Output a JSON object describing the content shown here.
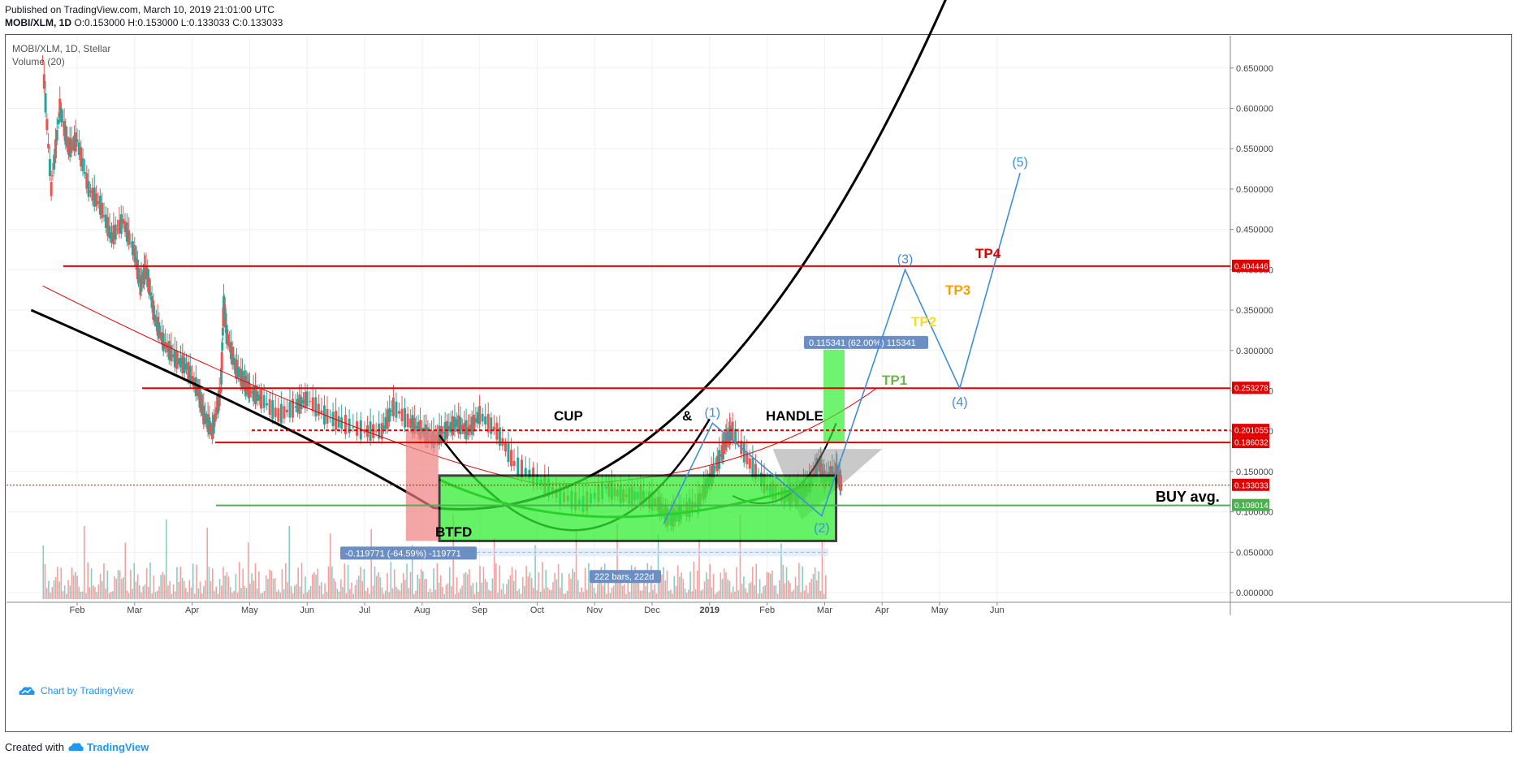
{
  "header": {
    "published": "Published on TradingView.com, March 10, 2019 21:01:00 UTC",
    "symbol": "MOBI/XLM, 1D",
    "ohlc": "O:0.153000 H:0.153000 L:0.133033 C:0.133033"
  },
  "legend": {
    "title": "MOBI/XLM, 1D, Stellar",
    "volume": "Volume (20)"
  },
  "watermark": {
    "text": "Chart by TradingView",
    "icon": "tradingview-cloud-icon"
  },
  "footer": {
    "created_with": "Created with",
    "brand": "TradingView",
    "icon": "tradingview-cloud-icon"
  },
  "colors": {
    "up": "#26a69a",
    "down": "#ef5350",
    "level": "#e00000",
    "buy": "#4caf50",
    "wave": "#3f8ed6",
    "zone": "#33ee33",
    "loss": "#f08080"
  },
  "chart_data": {
    "type": "candlestick",
    "ylim": [
      -0.01,
      0.69
    ],
    "y_ticks": [
      0.0,
      0.05,
      0.1,
      0.15,
      0.2,
      0.25,
      0.3,
      0.35,
      0.4,
      0.45,
      0.5,
      0.55,
      0.6,
      0.65
    ],
    "y_tick_labels": [
      "0.000000",
      "0.050000",
      "0.100000",
      "0.150000",
      "0.200000",
      "0.250000",
      "0.300000",
      "0.350000",
      "0.400000",
      "0.450000",
      "0.500000",
      "0.550000",
      "0.600000",
      "0.650000"
    ],
    "x_ticks": [
      "Feb",
      "Mar",
      "Apr",
      "May",
      "Jun",
      "Jul",
      "Aug",
      "Sep",
      "Oct",
      "Nov",
      "Dec",
      "2019",
      "Feb",
      "Mar",
      "Apr",
      "May",
      "Jun"
    ],
    "x_tick_months": [
      1,
      2,
      3,
      4,
      5,
      6,
      7,
      8,
      9,
      10,
      11,
      12,
      13,
      14,
      15,
      16,
      17
    ],
    "price_series": {
      "x_month": [
        0.4,
        0.55,
        0.7,
        0.85,
        1.0,
        1.2,
        1.4,
        1.6,
        1.8,
        2.0,
        2.1,
        2.2,
        2.35,
        2.5,
        2.7,
        2.9,
        3.1,
        3.2,
        3.35,
        3.5,
        3.55,
        3.6,
        3.75,
        3.9,
        4.0,
        4.2,
        4.5,
        4.8,
        5.0,
        5.3,
        5.6,
        6.0,
        6.3,
        6.5,
        6.8,
        7.0,
        7.2,
        7.4,
        7.6,
        7.8,
        8.0,
        8.3,
        8.6,
        9.0,
        9.4,
        9.8,
        10.2,
        10.5,
        10.8,
        11.1,
        11.3,
        11.5,
        11.8,
        12.0,
        12.2,
        12.3,
        12.4,
        12.7,
        13.0,
        13.3,
        13.5,
        13.7,
        13.9,
        14.0,
        14.2,
        14.3
      ],
      "close": [
        0.66,
        0.5,
        0.6,
        0.55,
        0.56,
        0.5,
        0.48,
        0.44,
        0.46,
        0.42,
        0.38,
        0.4,
        0.34,
        0.31,
        0.29,
        0.28,
        0.25,
        0.22,
        0.2,
        0.25,
        0.36,
        0.32,
        0.28,
        0.26,
        0.25,
        0.24,
        0.22,
        0.23,
        0.24,
        0.22,
        0.21,
        0.2,
        0.2,
        0.23,
        0.21,
        0.2,
        0.19,
        0.2,
        0.21,
        0.2,
        0.22,
        0.2,
        0.16,
        0.14,
        0.12,
        0.11,
        0.13,
        0.12,
        0.12,
        0.11,
        0.09,
        0.1,
        0.11,
        0.14,
        0.17,
        0.19,
        0.2,
        0.16,
        0.13,
        0.12,
        0.12,
        0.13,
        0.16,
        0.14,
        0.15,
        0.133
      ]
    },
    "levels": [
      {
        "label": "0.404446",
        "value": 0.404446,
        "style": "solid"
      },
      {
        "label": "0.253278",
        "value": 0.253278,
        "style": "solid"
      },
      {
        "label": "0.201055",
        "value": 0.201055,
        "style": "dashed"
      },
      {
        "label": "0.186032",
        "value": 0.186032,
        "style": "solid"
      },
      {
        "label": "0.133033",
        "value": 0.133033,
        "style": "dotted"
      },
      {
        "label": "0.108014",
        "value": 0.108014,
        "style": "buy"
      }
    ],
    "annotations": {
      "cup": "CUP",
      "amp": "&",
      "handle": "HANDLE",
      "btfd": "BTFD",
      "buy_avg": "BUY avg.",
      "tp1": "TP1",
      "tp2": "TP2",
      "tp3": "TP3",
      "tp4": "TP4",
      "wave1": "(1)",
      "wave2": "(2)",
      "wave3": "(3)",
      "wave4": "(4)",
      "wave5": "(5)",
      "gain_label": "0.115341 (62.00%) 115341",
      "loss_label": "-0.119771 (-64.59%) -119771",
      "bars_label": "222 bars, 222d"
    },
    "elliott_wave": {
      "x_month": [
        12.05,
        13.95,
        15.4,
        16.35,
        17.4
      ],
      "y": [
        0.21,
        0.095,
        0.4,
        0.253,
        0.52
      ]
    },
    "box": {
      "x_from": 7.3,
      "x_to": 14.2,
      "y_from": 0.064,
      "y_to": 0.145
    },
    "gain_bar": {
      "x_month": 14.15,
      "y_from": 0.186,
      "y_to": 0.301
    },
    "loss_bar": {
      "x_month": 7.0,
      "y_from": 0.064,
      "y_to": 0.2
    }
  }
}
